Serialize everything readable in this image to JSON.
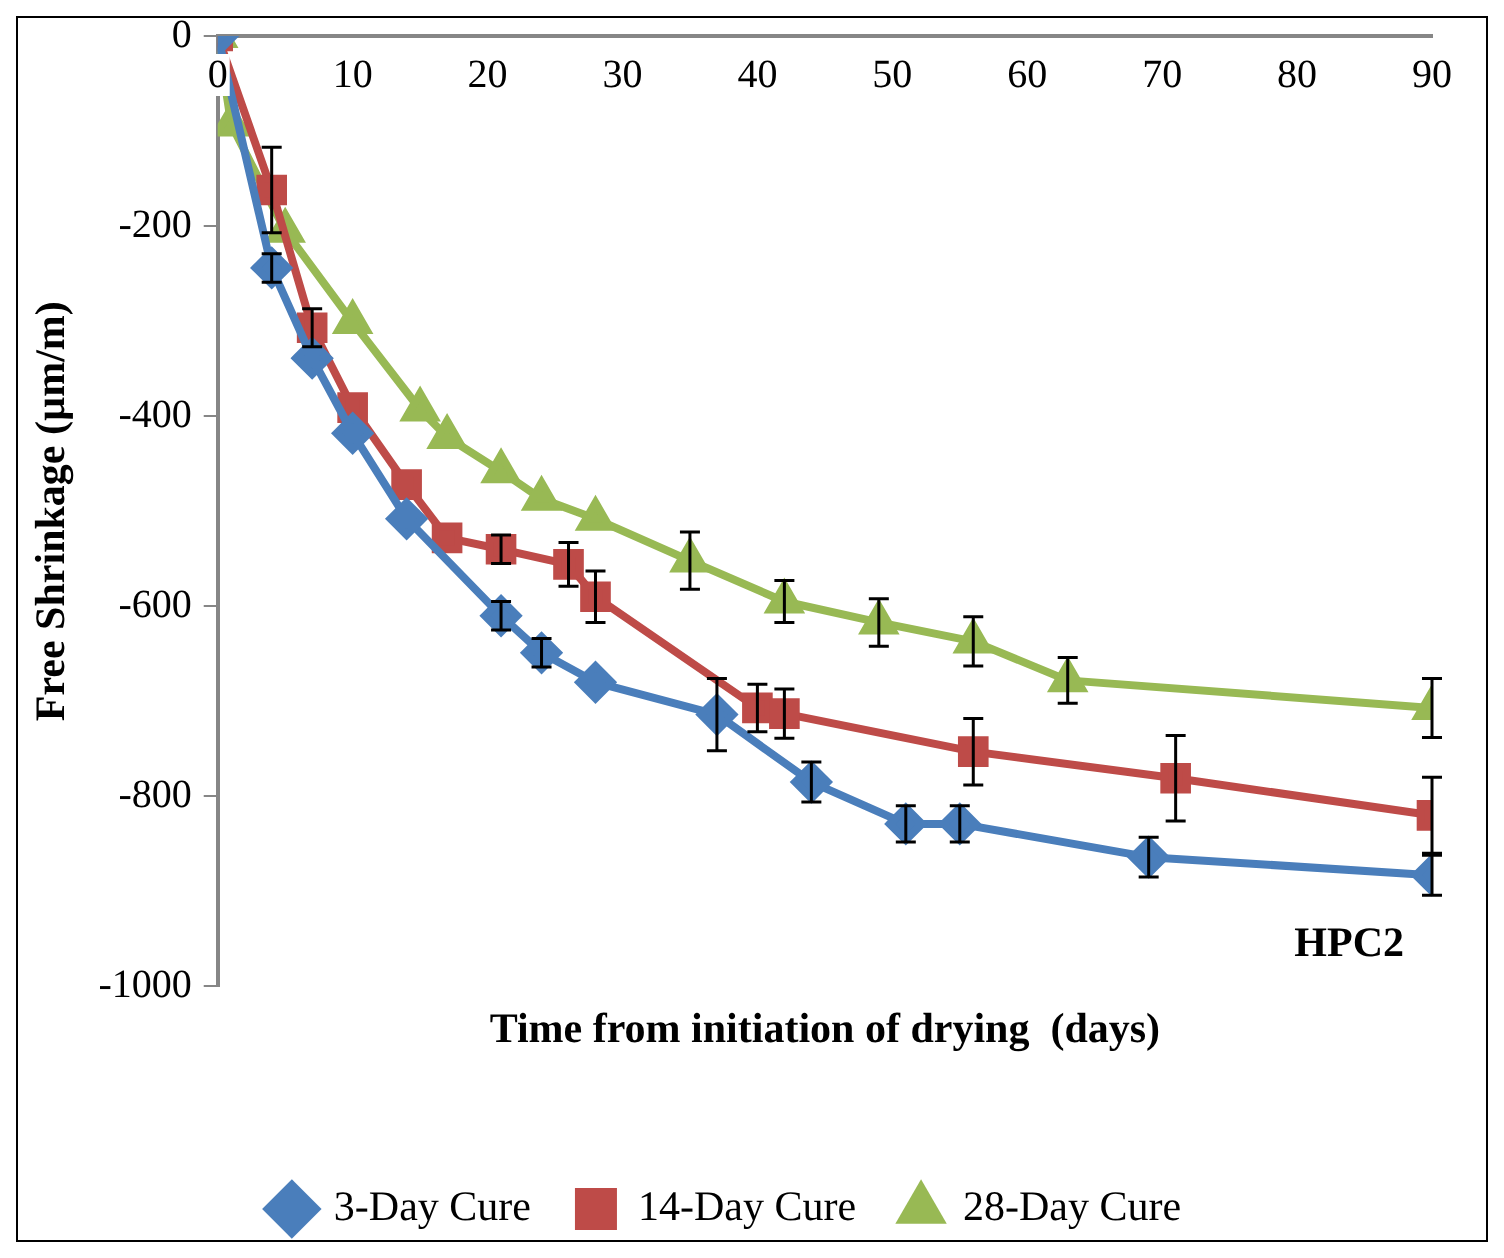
{
  "chart_data": {
    "type": "line",
    "xlabel": "Time from initiation of drying  (days)",
    "ylabel": "Free Shrinkage (µm/m)",
    "xlim": [
      0,
      90
    ],
    "xticks": [
      0,
      10,
      20,
      30,
      40,
      50,
      60,
      70,
      80,
      90
    ],
    "ylim": [
      -1000,
      0
    ],
    "yticks": [
      -1000,
      -800,
      -600,
      -400,
      -200,
      0
    ],
    "grid": false,
    "legend": "bottom",
    "annotations": [
      "HPC2"
    ],
    "series": [
      {
        "name": "3-Day Cure",
        "color": "#4a7ebb",
        "marker": "diamond",
        "x": [
          0,
          4,
          7,
          10,
          14,
          21,
          24,
          28,
          37,
          44,
          51,
          55,
          69,
          90
        ],
        "values": [
          0,
          -244,
          -339,
          -418,
          -508,
          -610,
          -649,
          -680,
          -714,
          -785,
          -829,
          -829,
          -864,
          -883
        ],
        "errors": [
          null,
          15,
          null,
          null,
          null,
          15,
          15,
          null,
          38,
          21,
          19,
          19,
          21,
          21
        ]
      },
      {
        "name": "14-Day Cure",
        "color": "#be4b48",
        "marker": "square",
        "x": [
          0,
          4,
          7,
          10,
          14,
          17,
          21,
          26,
          28,
          40,
          42,
          56,
          71,
          90
        ],
        "values": [
          0,
          -162,
          -307,
          -391,
          -472,
          -528,
          -540,
          -556,
          -590,
          -707,
          -713,
          -753,
          -781,
          -820
        ],
        "errors": [
          null,
          45,
          20,
          null,
          null,
          null,
          15,
          23,
          27,
          25,
          26,
          35,
          45,
          40
        ]
      },
      {
        "name": "28-Day Cure",
        "color": "#98b954",
        "marker": "triangle",
        "x": [
          0,
          1,
          5,
          10,
          15,
          17,
          21,
          24,
          28,
          35,
          42,
          49,
          56,
          63,
          90
        ],
        "values": [
          0,
          -93,
          -205,
          -301,
          -393,
          -422,
          -458,
          -487,
          -508,
          -552,
          -595,
          -617,
          -637,
          -678,
          -707
        ],
        "errors": [
          null,
          null,
          null,
          null,
          null,
          null,
          null,
          null,
          null,
          30,
          22,
          25,
          26,
          24,
          31
        ]
      }
    ]
  }
}
